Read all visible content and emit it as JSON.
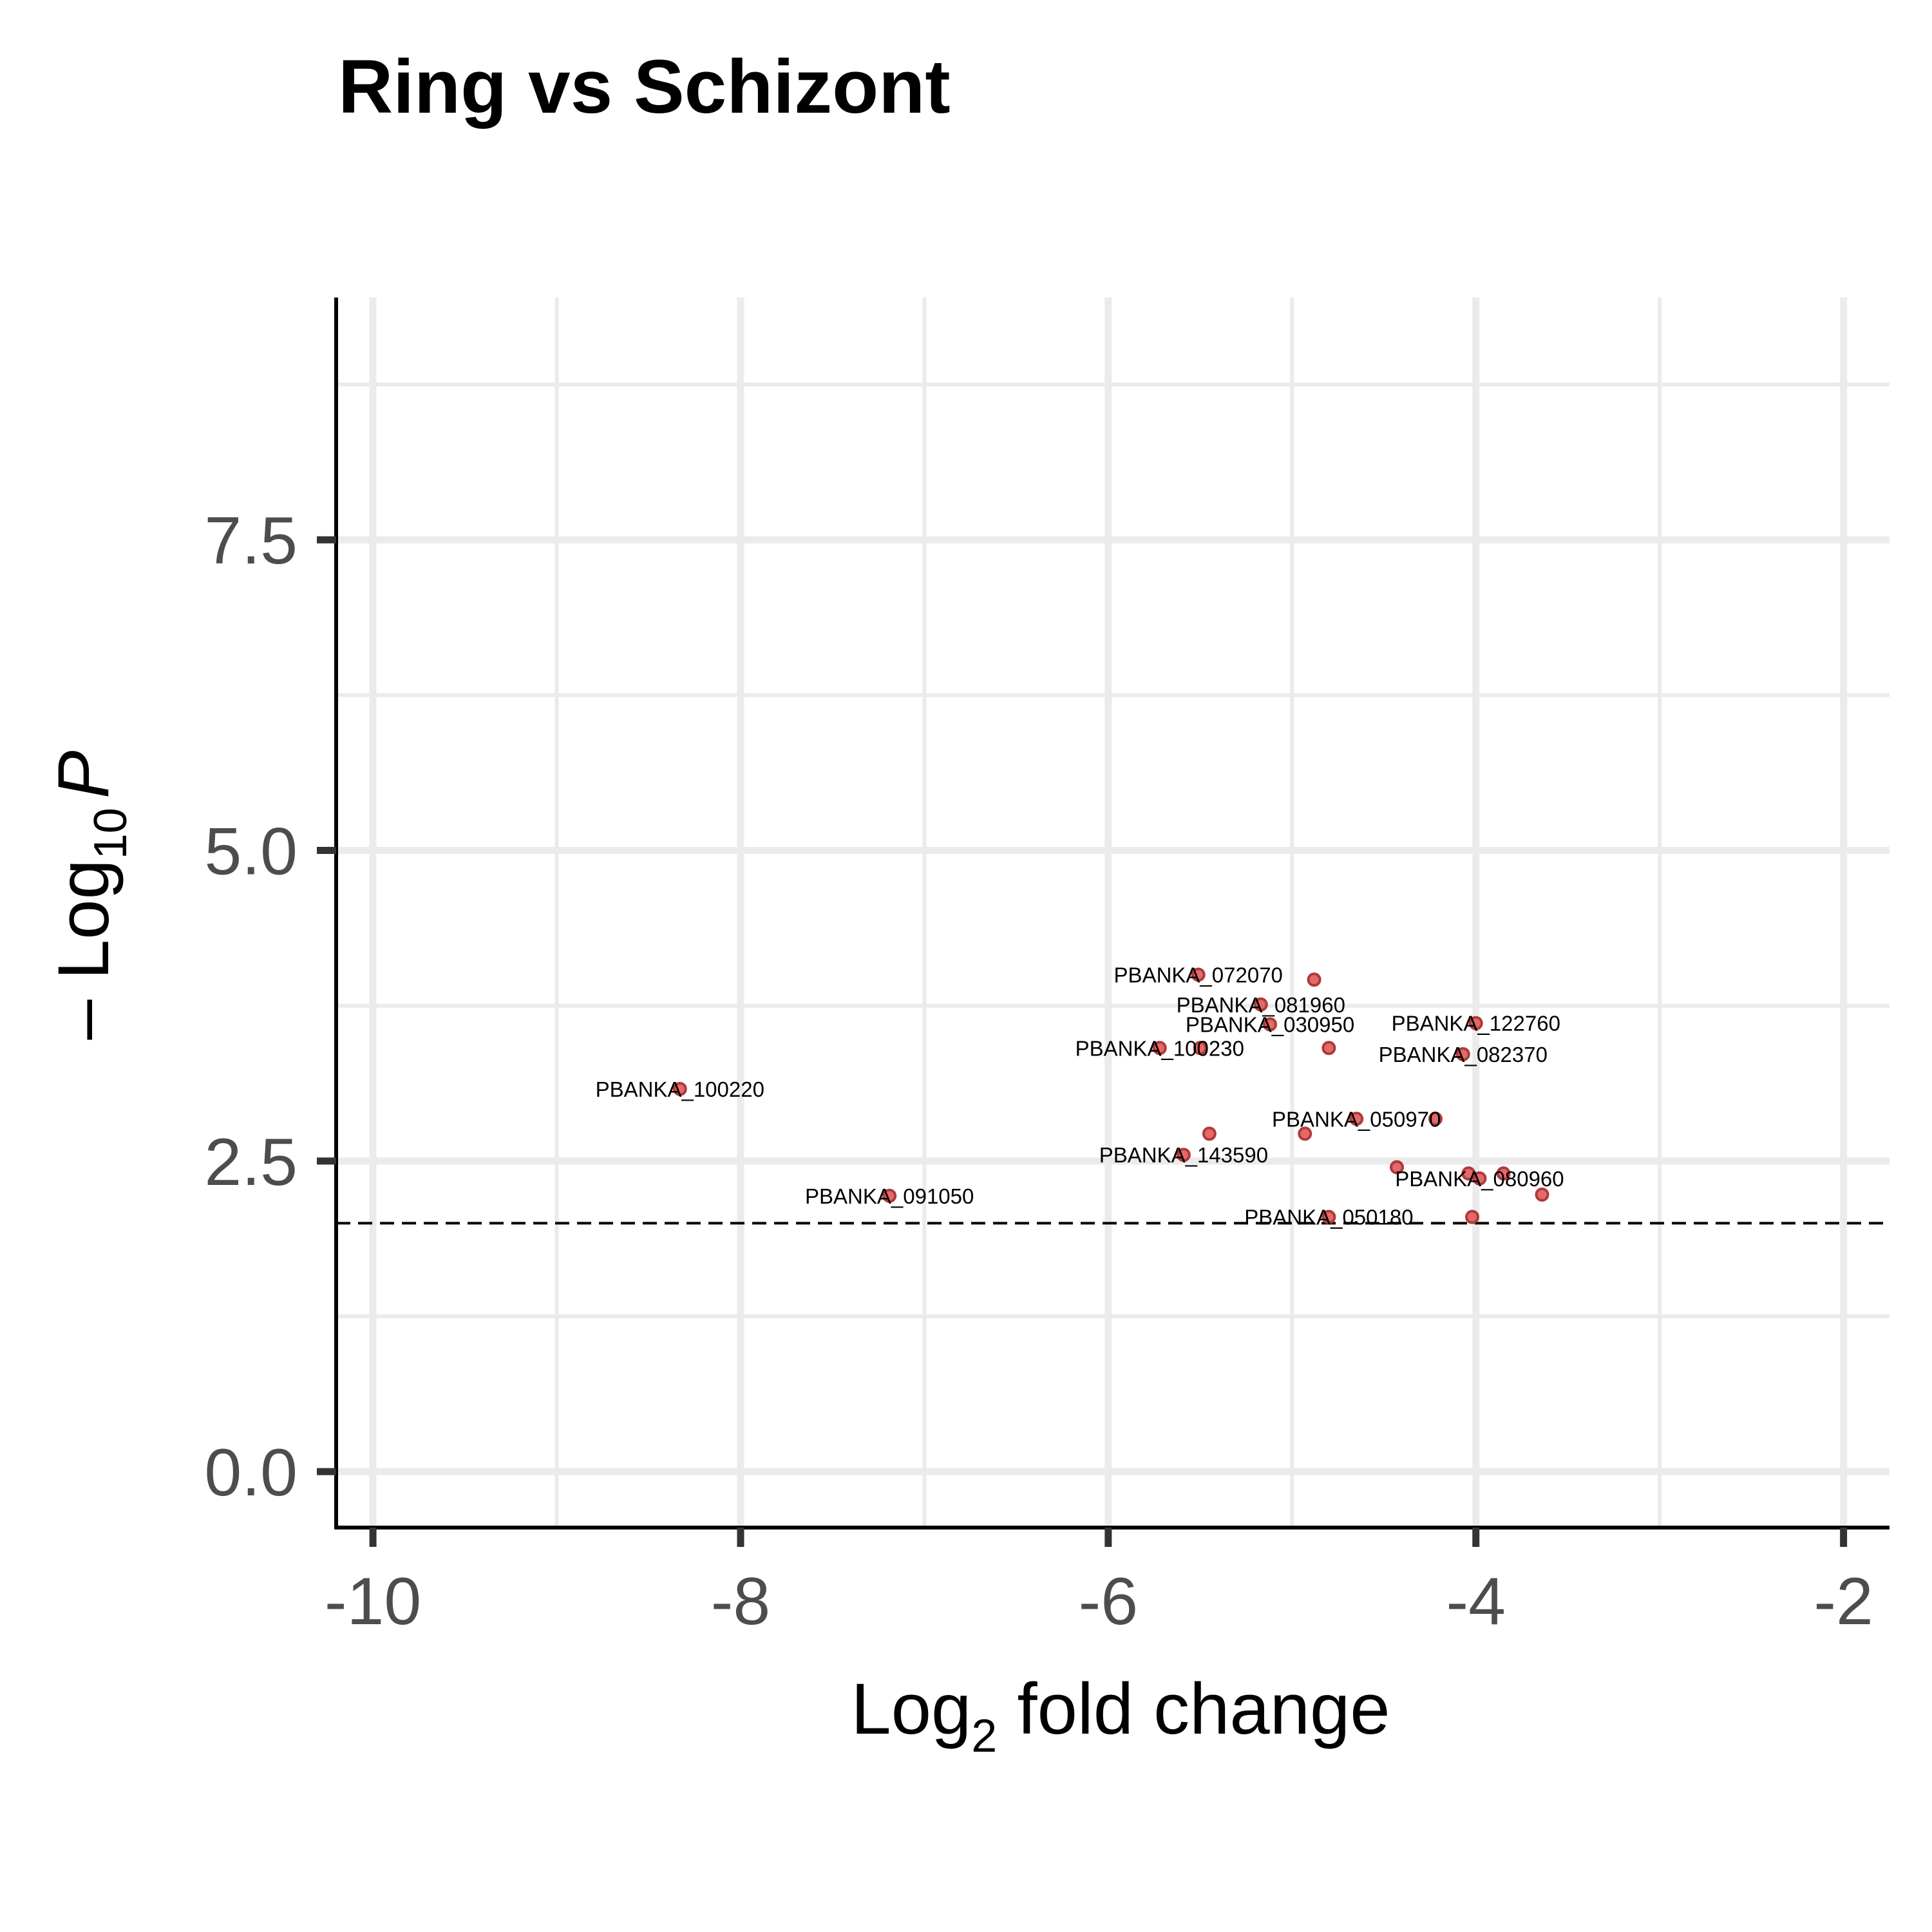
{
  "chart_data": {
    "type": "scatter",
    "title": "Ring vs Schizont",
    "xlabel": "Log",
    "xlabel_sub": "2",
    "xlabel_rest": " fold change",
    "ylabel_prefix": "– Log",
    "ylabel_sub": "10",
    "ylabel_var": "P",
    "xlim": [
      -10.2,
      -1.75
    ],
    "ylim": [
      -0.45,
      9.45
    ],
    "x_ticks": [
      -10,
      -8,
      -6,
      -4,
      -2
    ],
    "x_tick_labels": [
      "-10",
      "-8",
      "-6",
      "-4",
      "-2"
    ],
    "y_ticks": [
      0,
      2.5,
      5,
      7.5
    ],
    "y_tick_labels": [
      "0.0",
      "2.5",
      "5.0",
      "7.5"
    ],
    "x_minor": [
      -9,
      -7,
      -5,
      -3
    ],
    "y_minor": [
      1.25,
      3.75,
      6.25,
      8.75
    ],
    "grid": true,
    "p_cutoff_y": 2.0,
    "point_color": "#e05a5a",
    "points": [
      {
        "x": -8.33,
        "y": 3.08,
        "label": "PBANKA_100220"
      },
      {
        "x": -7.19,
        "y": 2.22,
        "label": "PBANKA_091050"
      },
      {
        "x": -5.72,
        "y": 3.41,
        "label": "PBANKA_100230"
      },
      {
        "x": -5.59,
        "y": 2.55,
        "label": "PBANKA_143590"
      },
      {
        "x": -5.51,
        "y": 4.0,
        "label": "PBANKA_072070"
      },
      {
        "x": -5.5,
        "y": 3.41,
        "label": ""
      },
      {
        "x": -5.45,
        "y": 2.72,
        "label": ""
      },
      {
        "x": -5.17,
        "y": 3.76,
        "label": "PBANKA_081960"
      },
      {
        "x": -5.12,
        "y": 3.6,
        "label": "PBANKA_030950"
      },
      {
        "x": -4.93,
        "y": 2.72,
        "label": ""
      },
      {
        "x": -4.88,
        "y": 3.96,
        "label": ""
      },
      {
        "x": -4.8,
        "y": 3.41,
        "label": ""
      },
      {
        "x": -4.8,
        "y": 2.05,
        "label": "PBANKA_050180"
      },
      {
        "x": -4.65,
        "y": 2.84,
        "label": "PBANKA_050970"
      },
      {
        "x": -4.43,
        "y": 2.45,
        "label": ""
      },
      {
        "x": -4.22,
        "y": 2.84,
        "label": ""
      },
      {
        "x": -4.07,
        "y": 3.36,
        "label": "PBANKA_082370"
      },
      {
        "x": -4.04,
        "y": 2.4,
        "label": ""
      },
      {
        "x": -4.02,
        "y": 2.05,
        "label": ""
      },
      {
        "x": -4.0,
        "y": 3.61,
        "label": "PBANKA_122760"
      },
      {
        "x": -3.98,
        "y": 2.36,
        "label": "PBANKA_080960"
      },
      {
        "x": -3.85,
        "y": 2.4,
        "label": ""
      },
      {
        "x": -3.64,
        "y": 2.23,
        "label": ""
      }
    ]
  }
}
